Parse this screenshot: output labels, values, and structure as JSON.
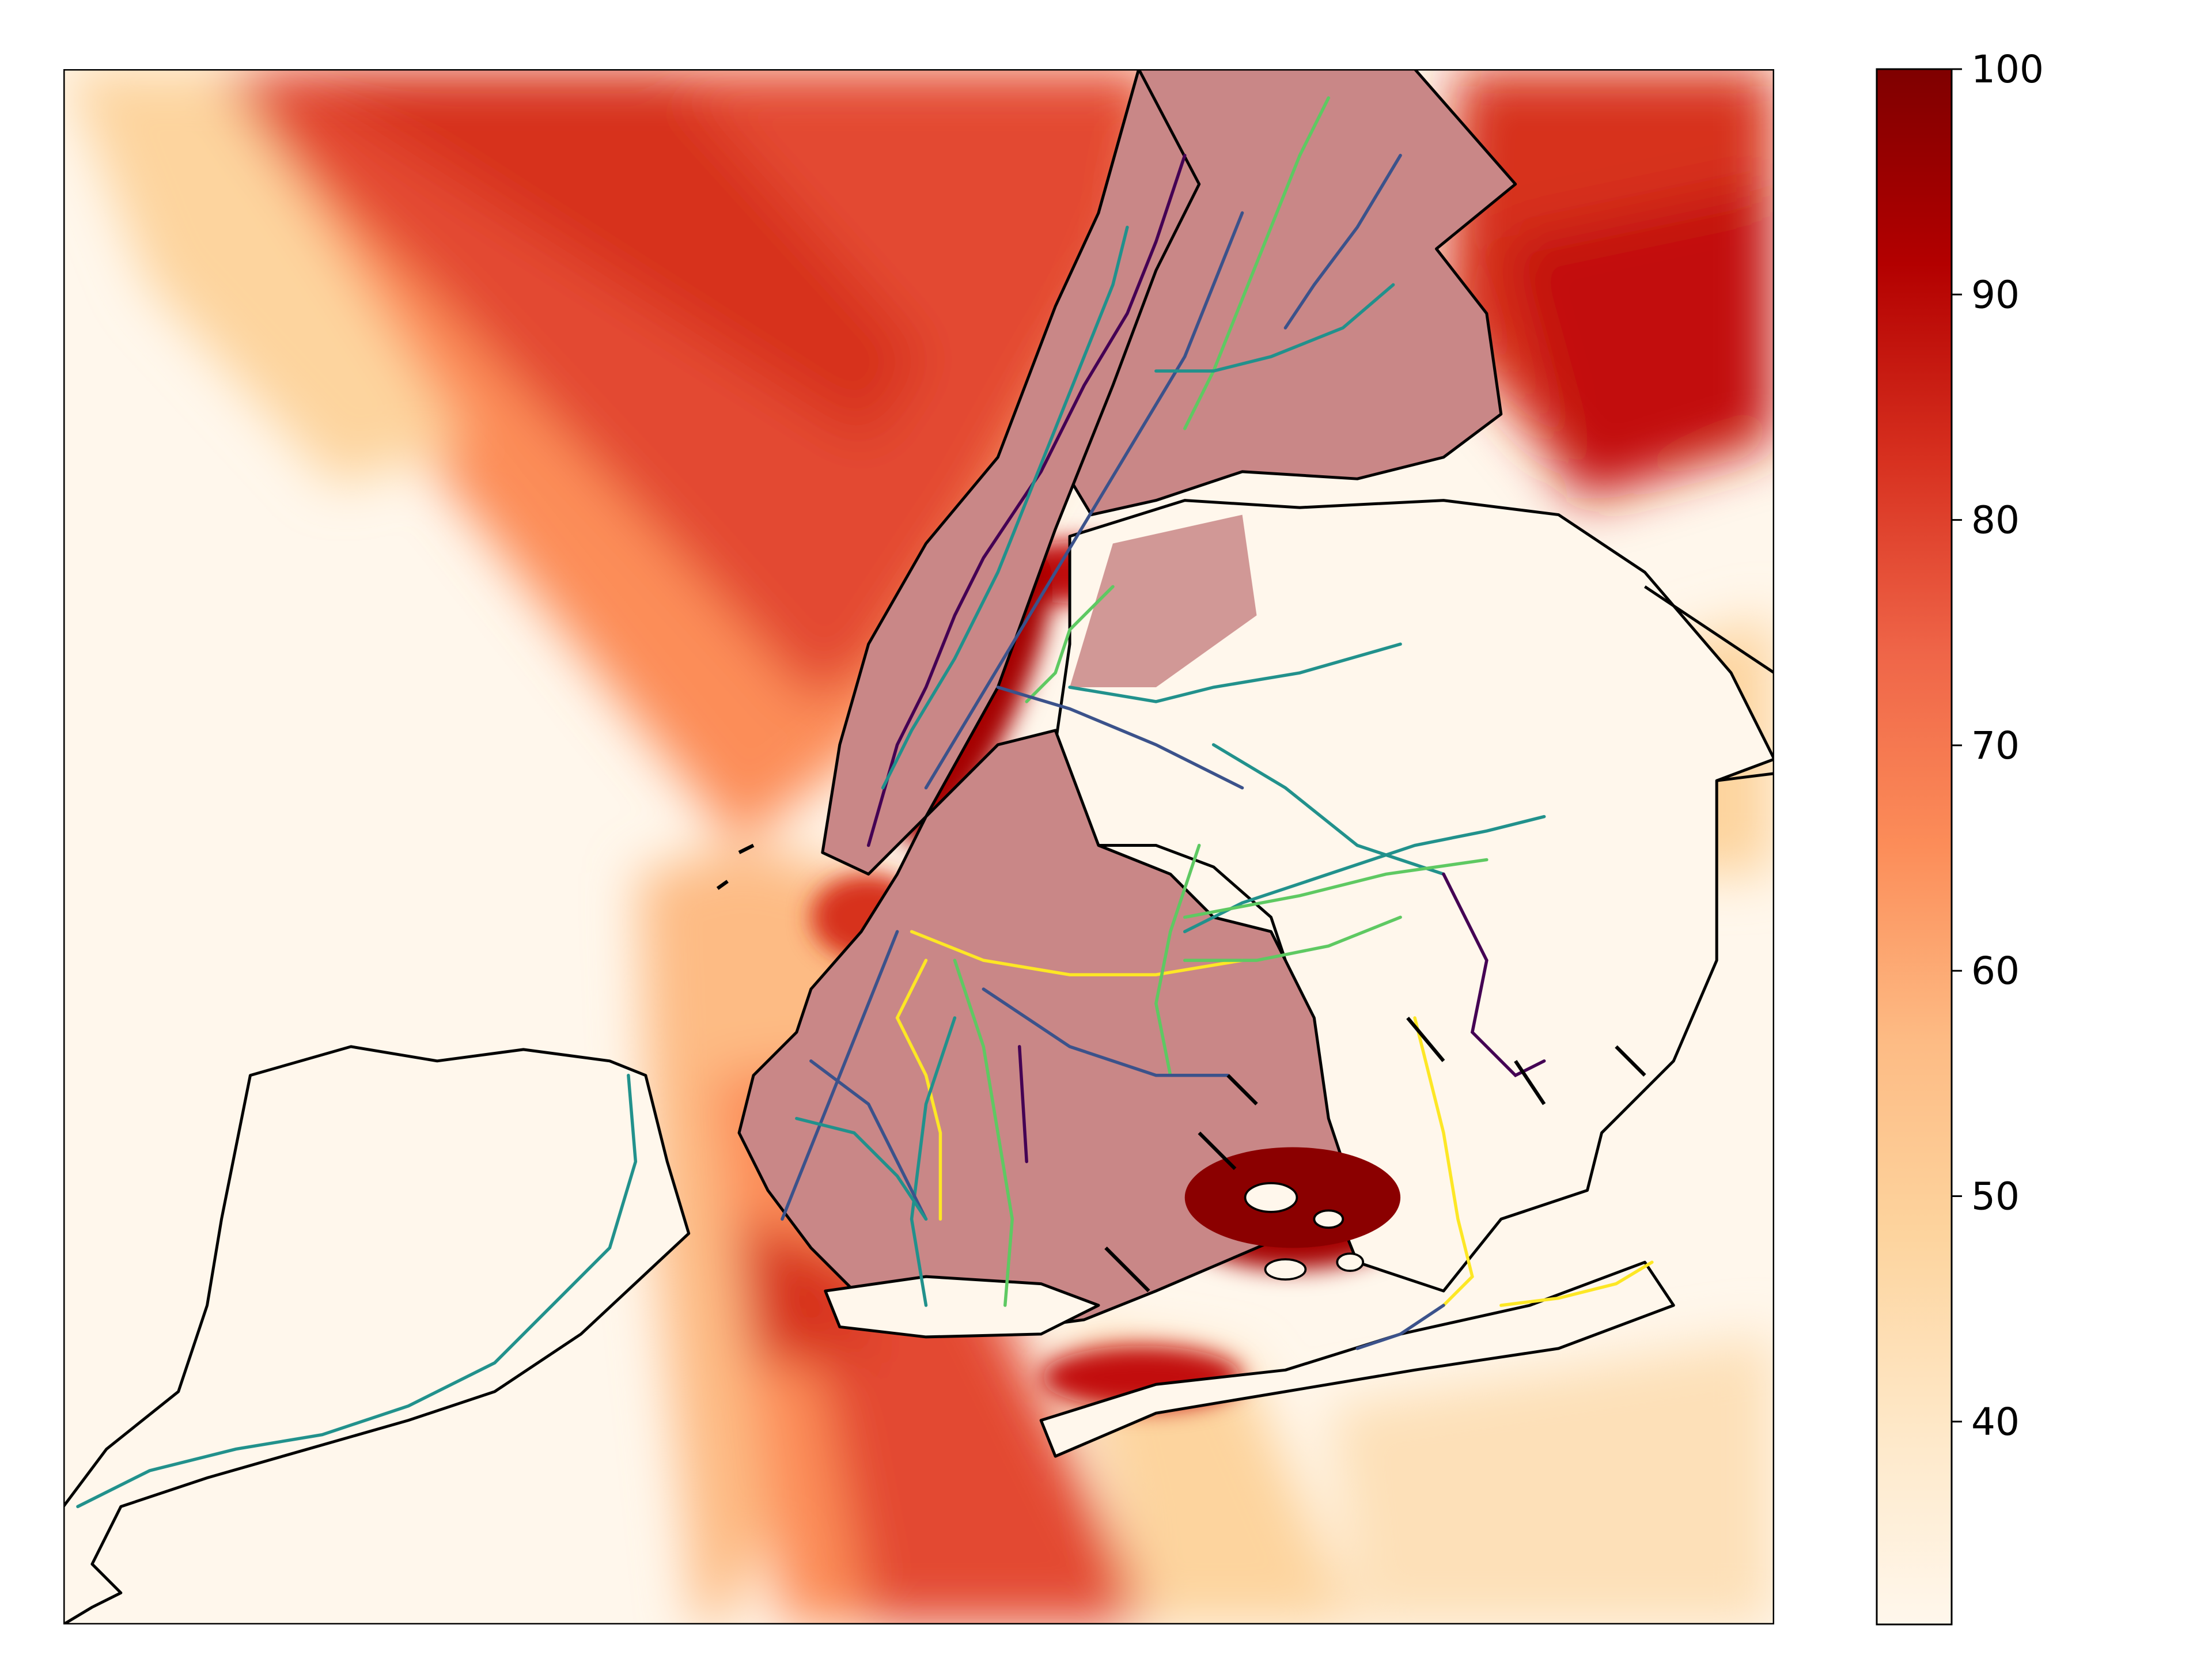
{
  "map": {
    "layers": [
      "heatmap",
      "borough-boundaries",
      "subway-lines"
    ],
    "colormap": "OrRd",
    "colors": {
      "low": "#fff7ec",
      "light": "#fde0b8",
      "mid": "#fc8d59",
      "high": "#d7301f",
      "max": "#7f0000",
      "land_overlay": "#c98787",
      "outline": "#000000"
    },
    "subway_line_colors": [
      "#440154",
      "#3b528b",
      "#21918c",
      "#5ec962",
      "#fde725"
    ]
  },
  "colorbar": {
    "min": 31,
    "max": 100,
    "ticks": [
      "40",
      "50",
      "60",
      "70",
      "80",
      "90",
      "100"
    ],
    "tick_values": [
      40,
      50,
      60,
      70,
      80,
      90,
      100
    ]
  }
}
